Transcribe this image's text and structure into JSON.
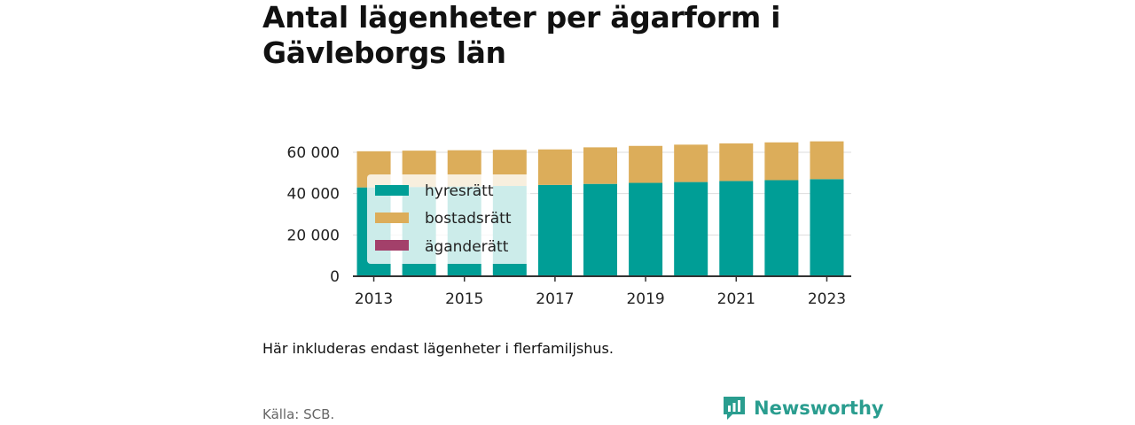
{
  "title": "Antal lägenheter per ägarform i Gävleborgs län",
  "note": "Här inkluderas endast lägenheter i flerfamiljshus.",
  "source": "Källa: SCB.",
  "brand": {
    "name": "Newsworthy",
    "icon": "newsworthy-logo-icon"
  },
  "colors": {
    "hyresratt": "#009e96",
    "bostadsratt": "#dcad5a",
    "aganderatt": "#a3406a",
    "axis": "#333333",
    "grid": "#dddddd"
  },
  "chart_data": {
    "type": "bar",
    "stacked": true,
    "categories": [
      "2013",
      "2014",
      "2015",
      "2016",
      "2017",
      "2018",
      "2019",
      "2020",
      "2021",
      "2022",
      "2023"
    ],
    "x_tick_labels": [
      "2013",
      "2015",
      "2017",
      "2019",
      "2021",
      "2023"
    ],
    "y_tick_labels": [
      "0",
      "20 000",
      "40 000",
      "60 000"
    ],
    "ylim": [
      0,
      60000
    ],
    "grid": true,
    "legend_position": "top-left",
    "series": [
      {
        "name": "hyresrätt",
        "color": "#009e96",
        "values": [
          43000,
          43200,
          43400,
          43700,
          44200,
          44700,
          45200,
          45600,
          46100,
          46500,
          47000
        ]
      },
      {
        "name": "bostadsrätt",
        "color": "#dcad5a",
        "values": [
          17500,
          17600,
          17600,
          17500,
          17200,
          17700,
          17900,
          18100,
          18200,
          18300,
          18300
        ]
      },
      {
        "name": "äganderätt",
        "color": "#a3406a",
        "values": [
          0,
          0,
          0,
          0,
          0,
          0,
          0,
          0,
          0,
          0,
          0
        ]
      }
    ]
  }
}
